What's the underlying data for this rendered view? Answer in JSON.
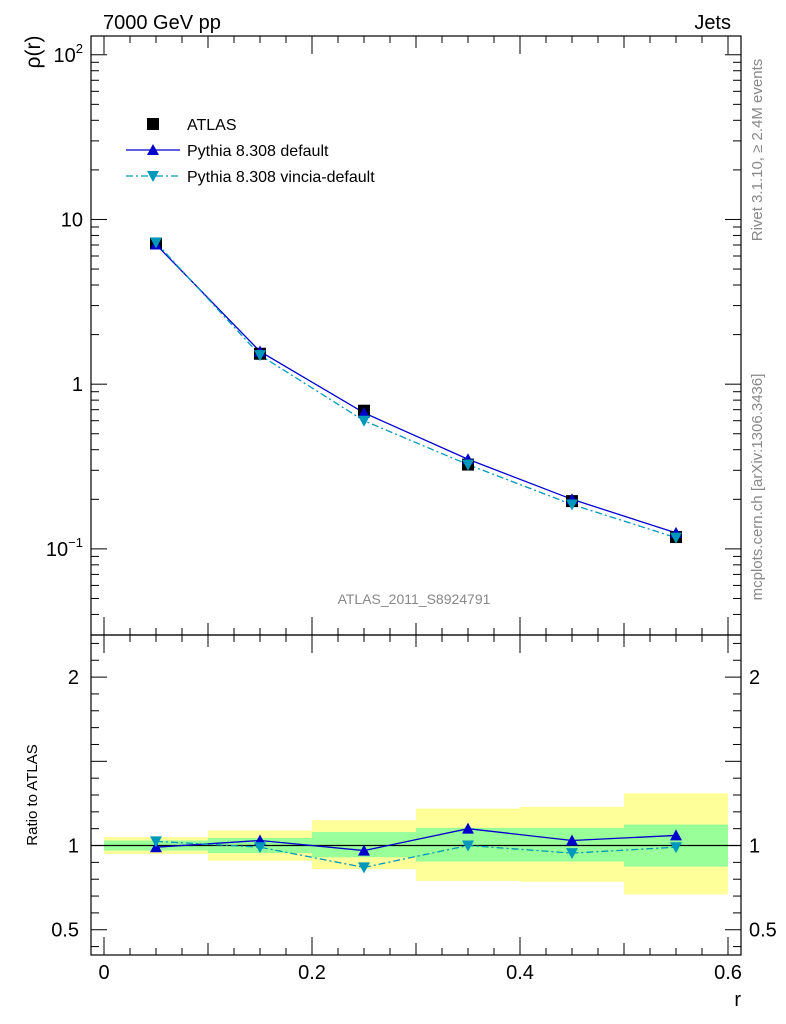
{
  "header": {
    "left": "7000 GeV pp",
    "right": "Jets"
  },
  "side_text": {
    "top": "Rivet 3.1.10, ≥ 2.4M events",
    "bottom": "mcplots.cern.ch [arXiv:1306.3436]"
  },
  "analysis_label": "ATLAS_2011_S8924791",
  "colors": {
    "data": "#000000",
    "default": "#0000cc",
    "vincia": "#0099bb",
    "band_inner": "#99ff99",
    "band_outer": "#ffff99"
  },
  "chart_data": [
    {
      "type": "line",
      "panel": "main",
      "ylabel": "ρ(r)",
      "yscale": "log",
      "xlim": [
        -0.0125,
        0.6125
      ],
      "ylim": [
        0.03,
        130
      ],
      "y_ticks": [
        {
          "value": 0.1,
          "base": "10",
          "exp": "−1"
        },
        {
          "value": 1,
          "base": "1",
          "exp": ""
        },
        {
          "value": 10,
          "base": "10",
          "exp": ""
        },
        {
          "value": 100,
          "base": "10",
          "exp": "2"
        }
      ],
      "legend_position": "top-left",
      "series": [
        {
          "name": "ATLAS",
          "marker": "square",
          "x": [
            0.05,
            0.15,
            0.25,
            0.35,
            0.45,
            0.55
          ],
          "y": [
            7.15,
            1.53,
            0.69,
            0.325,
            0.195,
            0.118
          ]
        },
        {
          "name": "Pythia 8.308 default",
          "marker": "triangle-up",
          "line": "solid",
          "x": [
            0.05,
            0.15,
            0.25,
            0.35,
            0.45,
            0.55
          ],
          "y": [
            7.05,
            1.58,
            0.67,
            0.35,
            0.2,
            0.125
          ]
        },
        {
          "name": "Pythia 8.308 vincia-default",
          "marker": "triangle-down",
          "line": "dashdot",
          "x": [
            0.05,
            0.15,
            0.25,
            0.35,
            0.45,
            0.55
          ],
          "y": [
            7.25,
            1.5,
            0.6,
            0.325,
            0.186,
            0.117
          ]
        }
      ]
    },
    {
      "type": "line",
      "panel": "ratio",
      "xlabel": "r",
      "ylabel": "Ratio to ATLAS",
      "xlim": [
        -0.0125,
        0.6125
      ],
      "ylim": [
        0.35,
        2.25
      ],
      "x_ticks": [
        {
          "value": 0,
          "label": "0"
        },
        {
          "value": 0.2,
          "label": "0.2"
        },
        {
          "value": 0.4,
          "label": "0.4"
        },
        {
          "value": 0.6,
          "label": "0.6"
        }
      ],
      "y_ticks": [
        {
          "value": 0.5,
          "label": "0.5"
        },
        {
          "value": 1,
          "label": "1"
        },
        {
          "value": 2,
          "label": "2"
        }
      ],
      "bands": [
        {
          "x0": 0.0,
          "x1": 0.1,
          "inner": [
            0.97,
            1.03
          ],
          "outer": [
            0.95,
            1.05
          ]
        },
        {
          "x0": 0.1,
          "x1": 0.2,
          "inner": [
            0.955,
            1.045
          ],
          "outer": [
            0.91,
            1.09
          ]
        },
        {
          "x0": 0.2,
          "x1": 0.3,
          "inner": [
            0.93,
            1.08
          ],
          "outer": [
            0.86,
            1.15
          ]
        },
        {
          "x0": 0.3,
          "x1": 0.4,
          "inner": [
            0.905,
            1.105
          ],
          "outer": [
            0.79,
            1.22
          ]
        },
        {
          "x0": 0.4,
          "x1": 0.5,
          "inner": [
            0.905,
            1.105
          ],
          "outer": [
            0.785,
            1.23
          ]
        },
        {
          "x0": 0.5,
          "x1": 0.6,
          "inner": [
            0.875,
            1.125
          ],
          "outer": [
            0.71,
            1.31
          ]
        }
      ],
      "series": [
        {
          "name": "Pythia 8.308 default",
          "x": [
            0.05,
            0.15,
            0.25,
            0.35,
            0.45,
            0.55
          ],
          "y": [
            0.99,
            1.03,
            0.97,
            1.1,
            1.03,
            1.06
          ]
        },
        {
          "name": "Pythia 8.308 vincia-default",
          "x": [
            0.05,
            0.15,
            0.25,
            0.35,
            0.45,
            0.55
          ],
          "y": [
            1.025,
            0.99,
            0.87,
            1.0,
            0.955,
            0.99
          ]
        }
      ]
    }
  ]
}
